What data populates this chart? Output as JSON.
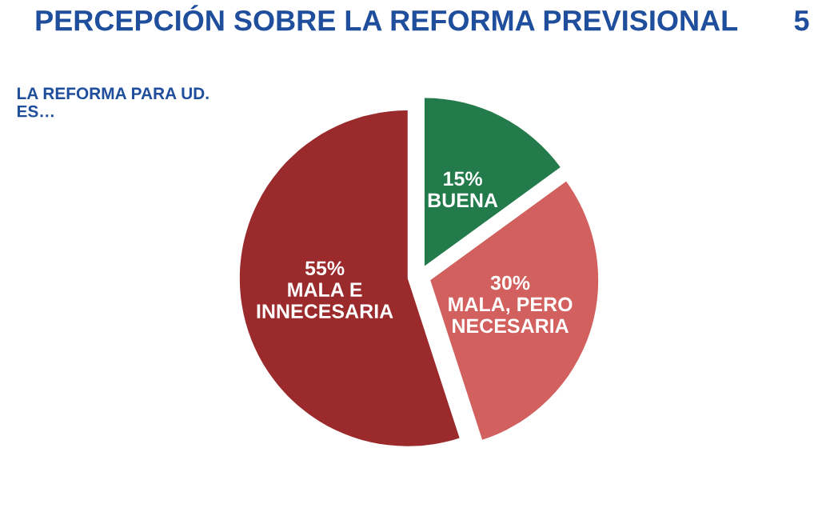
{
  "chart_data": {
    "type": "pie",
    "title": "PERCEPCIÓN SOBRE LA REFORMA PREVISIONAL",
    "subtitle": "LA REFORMA PARA UD.\nES…",
    "categories": [
      "BUENA",
      "MALA, PERO\nNECESARIA",
      "MALA E\nINNECESARIA"
    ],
    "values": [
      15,
      30,
      55
    ],
    "value_labels": [
      "15%",
      "30%",
      "55%"
    ],
    "colors": [
      "#237a4b",
      "#d2605e",
      "#9a2a2b"
    ],
    "annotations": [
      "5"
    ],
    "legend": false
  }
}
